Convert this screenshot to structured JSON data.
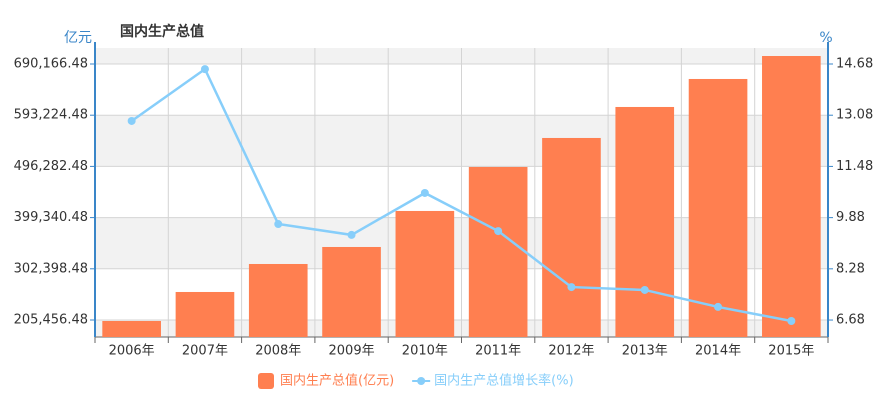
{
  "chart_data": {
    "type": "bar",
    "title": "国内生产总值",
    "y_label": "亿元",
    "y2_label": "%",
    "categories": [
      "2006年",
      "2007年",
      "2008年",
      "2009年",
      "2010年",
      "2011年",
      "2012年",
      "2013年",
      "2014年",
      "2015年"
    ],
    "series": [
      {
        "name": "国内生产总值(亿元)",
        "type": "bar",
        "color": "#ff7f50",
        "values": [
          203600,
          258500,
          311500,
          343700,
          411900,
          495200,
          550100,
          608800,
          661800,
          705300
        ]
      },
      {
        "name": "国内生产总值增长率(%)",
        "type": "line",
        "axis": "y2",
        "color": "#87cefa",
        "values": [
          12.9,
          14.52,
          9.68,
          9.34,
          10.65,
          9.46,
          7.71,
          7.62,
          7.09,
          6.65
        ]
      }
    ],
    "ylim": [
      173270,
      720456
    ],
    "yticks": [
      {
        "value": 205456.48,
        "label": "205,456.48"
      },
      {
        "value": 302398.48,
        "label": "302,398.48"
      },
      {
        "value": 399340.48,
        "label": "399,340.48"
      },
      {
        "value": 496282.48,
        "label": "496,282.48"
      },
      {
        "value": 593224.48,
        "label": "593,224.48"
      },
      {
        "value": 690166.48,
        "label": "690,166.48"
      }
    ],
    "y2lim": [
      6.15,
      15.18
    ],
    "y2ticks": [
      6.68,
      8.28,
      9.88,
      11.48,
      13.08,
      14.68
    ],
    "grid": true,
    "legend": "bottom"
  }
}
